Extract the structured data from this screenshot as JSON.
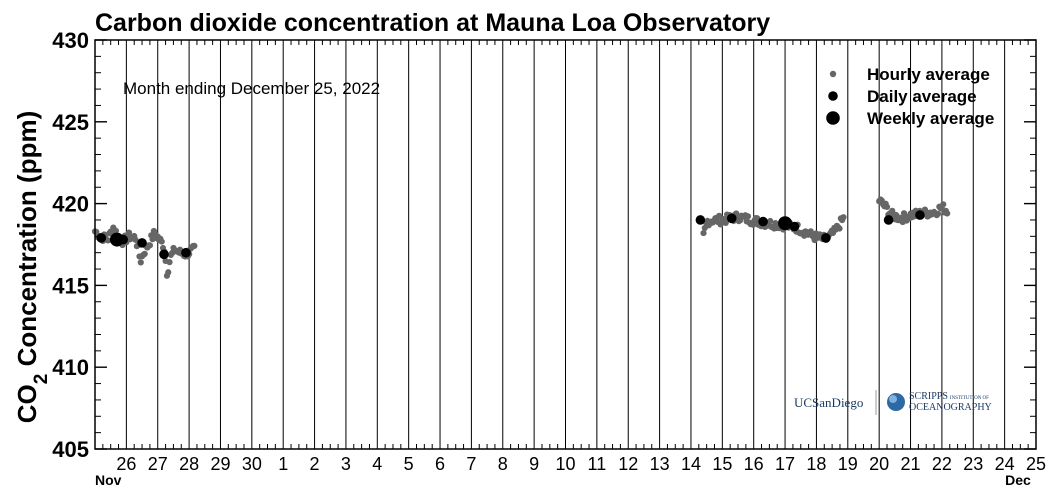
{
  "chart_data": {
    "type": "scatter",
    "title": "Carbon dioxide concentration at Mauna Loa Observatory",
    "ylabel": "CO₂ Concentration (ppm)",
    "ylabel_main": "CO",
    "ylabel_sub": "2",
    "ylabel_rest": " Concentration (ppm)",
    "xlabel": "",
    "annotation": "Month ending December 25, 2022",
    "ylim": [
      405,
      430
    ],
    "yticks": [
      405,
      410,
      415,
      420,
      425,
      430
    ],
    "xlim": [
      25,
      55
    ],
    "xticks": [
      {
        "x": 26,
        "label": "26"
      },
      {
        "x": 27,
        "label": "27"
      },
      {
        "x": 28,
        "label": "28"
      },
      {
        "x": 29,
        "label": "29"
      },
      {
        "x": 30,
        "label": "30"
      },
      {
        "x": 31,
        "label": "1"
      },
      {
        "x": 32,
        "label": "2"
      },
      {
        "x": 33,
        "label": "3"
      },
      {
        "x": 34,
        "label": "4"
      },
      {
        "x": 35,
        "label": "5"
      },
      {
        "x": 36,
        "label": "6"
      },
      {
        "x": 37,
        "label": "7"
      },
      {
        "x": 38,
        "label": "8"
      },
      {
        "x": 39,
        "label": "9"
      },
      {
        "x": 40,
        "label": "10"
      },
      {
        "x": 41,
        "label": "11"
      },
      {
        "x": 42,
        "label": "12"
      },
      {
        "x": 43,
        "label": "13"
      },
      {
        "x": 44,
        "label": "14"
      },
      {
        "x": 45,
        "label": "15"
      },
      {
        "x": 46,
        "label": "16"
      },
      {
        "x": 47,
        "label": "17"
      },
      {
        "x": 48,
        "label": "18"
      },
      {
        "x": 49,
        "label": "19"
      },
      {
        "x": 50,
        "label": "20"
      },
      {
        "x": 51,
        "label": "21"
      },
      {
        "x": 52,
        "label": "22"
      },
      {
        "x": 53,
        "label": "23"
      },
      {
        "x": 54,
        "label": "24"
      },
      {
        "x": 55,
        "label": "25"
      }
    ],
    "month_labels": [
      {
        "x": 25,
        "label": "Nov"
      },
      {
        "x": 55,
        "label": "Dec"
      }
    ],
    "legend": {
      "position": "top-right",
      "entries": [
        {
          "label": "Hourly average",
          "series": "hourly"
        },
        {
          "label": "Daily average",
          "series": "daily"
        },
        {
          "label": "Weekly average",
          "series": "weekly"
        }
      ]
    },
    "colors": {
      "hourly": "#666666",
      "daily": "#000000",
      "weekly": "#000000"
    },
    "series": [
      {
        "name": "Daily average",
        "key": "daily",
        "points": [
          [
            25.2,
            417.9
          ],
          [
            25.9,
            417.8
          ],
          [
            26.5,
            417.6
          ],
          [
            27.2,
            416.9
          ],
          [
            27.9,
            417.0
          ],
          [
            44.3,
            419.0
          ],
          [
            45.3,
            419.1
          ],
          [
            46.3,
            418.9
          ],
          [
            47.3,
            418.6
          ],
          [
            48.3,
            417.9
          ],
          [
            50.3,
            419.0
          ],
          [
            51.3,
            419.3
          ]
        ]
      },
      {
        "name": "Weekly average",
        "key": "weekly",
        "points": [
          [
            25.7,
            417.8
          ],
          [
            47.0,
            418.8
          ]
        ]
      }
    ],
    "hourly_segments": [
      {
        "start": 25.0,
        "end": 28.2,
        "step": 0.0417,
        "knots": [
          [
            25.0,
            418.3
          ],
          [
            25.2,
            418.0
          ],
          [
            25.4,
            417.8
          ],
          [
            25.6,
            418.6
          ],
          [
            25.75,
            417.8
          ],
          [
            25.9,
            417.7
          ],
          [
            26.1,
            418.0
          ],
          [
            26.3,
            417.9
          ],
          [
            26.45,
            416.5
          ],
          [
            26.55,
            417.0
          ],
          [
            26.7,
            417.5
          ],
          [
            26.9,
            418.2
          ],
          [
            27.05,
            417.8
          ],
          [
            27.2,
            417.4
          ],
          [
            27.3,
            415.7
          ],
          [
            27.4,
            416.7
          ],
          [
            27.55,
            417.2
          ],
          [
            27.7,
            417.0
          ],
          [
            27.9,
            416.9
          ],
          [
            28.05,
            417.1
          ],
          [
            28.2,
            417.2
          ]
        ]
      },
      {
        "start": 44.4,
        "end": 48.9,
        "step": 0.0417,
        "knots": [
          [
            44.4,
            418.0
          ],
          [
            44.5,
            418.9
          ],
          [
            44.7,
            419.0
          ],
          [
            45.0,
            419.0
          ],
          [
            45.5,
            419.2
          ],
          [
            45.9,
            419.0
          ],
          [
            46.4,
            418.8
          ],
          [
            46.9,
            418.7
          ],
          [
            47.4,
            418.5
          ],
          [
            47.9,
            418.0
          ],
          [
            48.3,
            417.8
          ],
          [
            48.6,
            418.3
          ],
          [
            48.9,
            419.2
          ]
        ]
      },
      {
        "start": 50.0,
        "end": 52.2,
        "step": 0.0417,
        "knots": [
          [
            50.0,
            420.2
          ],
          [
            50.2,
            419.8
          ],
          [
            50.4,
            419.3
          ],
          [
            50.7,
            419.1
          ],
          [
            51.0,
            419.3
          ],
          [
            51.4,
            419.4
          ],
          [
            51.8,
            419.5
          ],
          [
            52.0,
            419.8
          ],
          [
            52.2,
            419.5
          ]
        ]
      }
    ]
  },
  "logos": {
    "ucsd": "UCSanDiego",
    "scripps_top": "SCRIPPS",
    "scripps_small": "INSTITUTION OF",
    "scripps_bottom": "OCEANOGRAPHY"
  }
}
